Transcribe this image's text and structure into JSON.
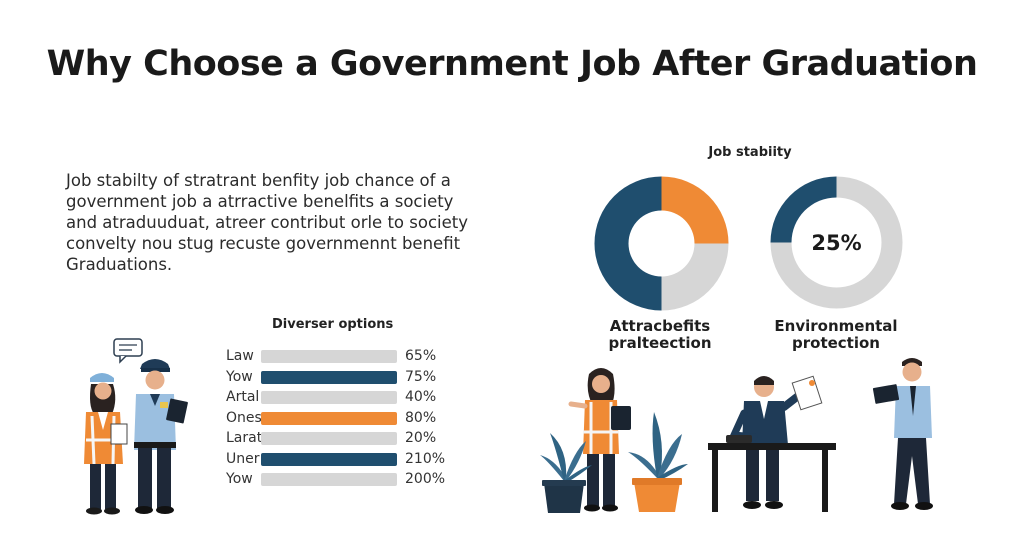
{
  "title": "Why Choose a Government Job After Graduation",
  "intro_lines": [
    "Job stabilty of stratrant benfity job chance of a",
    "government job a atrractive benelfits a society",
    "and atraduuduat, atreer contribut orle to society",
    "convelty nou stug recuste governmennt benefit",
    "Graduations."
  ],
  "chart_data": [
    {
      "type": "bar",
      "title": "Diverser options",
      "categories": [
        "Law",
        "Yow",
        "Artal",
        "Ones",
        "Larat",
        "Uner",
        "Yow"
      ],
      "values": [
        65,
        75,
        40,
        80,
        20,
        210,
        200
      ],
      "value_labels": [
        "65%",
        "75%",
        "40%",
        "80%",
        "20%",
        "210%",
        "200%"
      ],
      "bar_colors": [
        "#d6d6d6",
        "#1f4e6e",
        "#d6d6d6",
        "#ef8a35",
        "#d6d6d6",
        "#1f4e6e",
        "#d6d6d6"
      ]
    },
    {
      "type": "pie",
      "title": "Job stabiity",
      "caption": [
        "Attracbefits",
        "pralteection"
      ],
      "slices": [
        {
          "value": 50,
          "color": "#1f4e6e"
        },
        {
          "value": 25,
          "color": "#ef8a35"
        },
        {
          "value": 25,
          "color": "#d6d6d6"
        }
      ]
    },
    {
      "type": "pie",
      "center_label": "25%",
      "caption": [
        "Environmental",
        "protection"
      ],
      "slices": [
        {
          "value": 25,
          "color": "#1f4e6e"
        },
        {
          "value": 75,
          "color": "#d6d6d6"
        }
      ]
    }
  ],
  "colors": {
    "navy": "#1f4e6e",
    "orange": "#ef8a35",
    "grey": "#d6d6d6"
  },
  "illustrations": [
    "chat-bubble-icon",
    "inspector-person",
    "police-officer",
    "woman-with-tablet",
    "plant-pot-navy",
    "plant-pot-orange",
    "man-at-desk",
    "man-with-laptop"
  ]
}
